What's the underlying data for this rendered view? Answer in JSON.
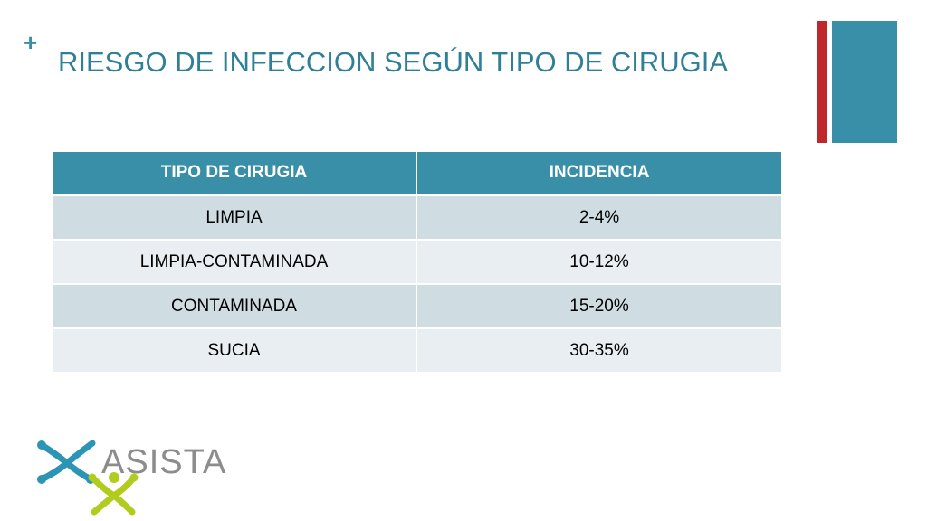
{
  "slide": {
    "plus_mark": "+",
    "title": "RIESGO DE INFECCION SEGÚN TIPO DE CIRUGIA"
  },
  "table": {
    "headers": [
      "TIPO DE CIRUGIA",
      "INCIDENCIA"
    ],
    "rows": [
      [
        "LIMPIA",
        "2-4%"
      ],
      [
        "LIMPIA-CONTAMINADA",
        "10-12%"
      ],
      [
        "CONTAMINADA",
        "15-20%"
      ],
      [
        "SUCIA",
        "30-35%"
      ]
    ]
  },
  "logo": {
    "text": "ASISTA",
    "icon": "asista-figure-icon"
  },
  "colors": {
    "accent": "#3A8FA8",
    "accent_red": "#C0272D",
    "title_text": "#2F7F97",
    "header_text": "#FFFFFF",
    "row_dark": "#CFDDE3",
    "row_light": "#E8EEF1",
    "cell_text": "#000000",
    "logo_blue": "#2C95B6",
    "logo_green": "#B2CC1E",
    "logo_text": "#8C8C8C"
  }
}
